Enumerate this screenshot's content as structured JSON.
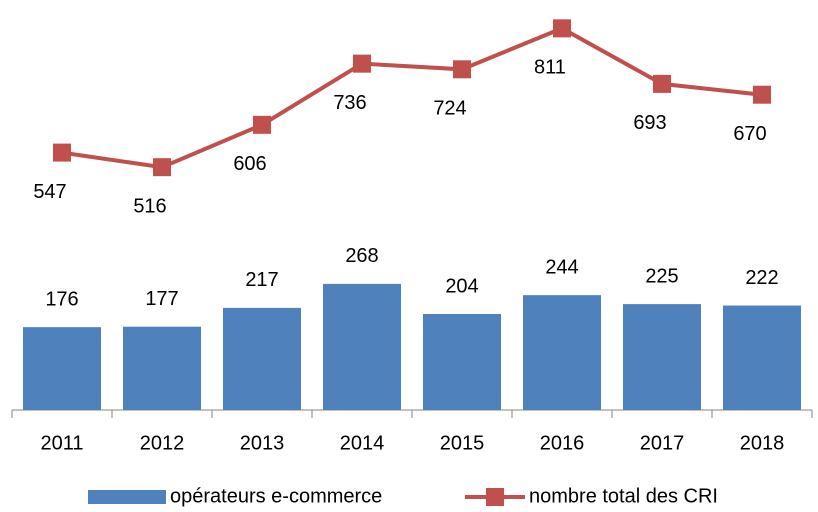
{
  "chart_data": {
    "type": "combo",
    "categories": [
      "2011",
      "2012",
      "2013",
      "2014",
      "2015",
      "2016",
      "2017",
      "2018"
    ],
    "series": [
      {
        "name": "opérateurs e-commerce",
        "type": "bar",
        "color": "#4f81bd",
        "values": [
          176,
          177,
          217,
          268,
          204,
          244,
          225,
          222
        ]
      },
      {
        "name": "nombre total des CRI",
        "type": "line",
        "color": "#c0504d",
        "values": [
          547,
          516,
          606,
          736,
          724,
          811,
          693,
          670
        ]
      }
    ],
    "ylim": [
      0,
      850
    ],
    "grid": false,
    "legend": "bottom"
  }
}
